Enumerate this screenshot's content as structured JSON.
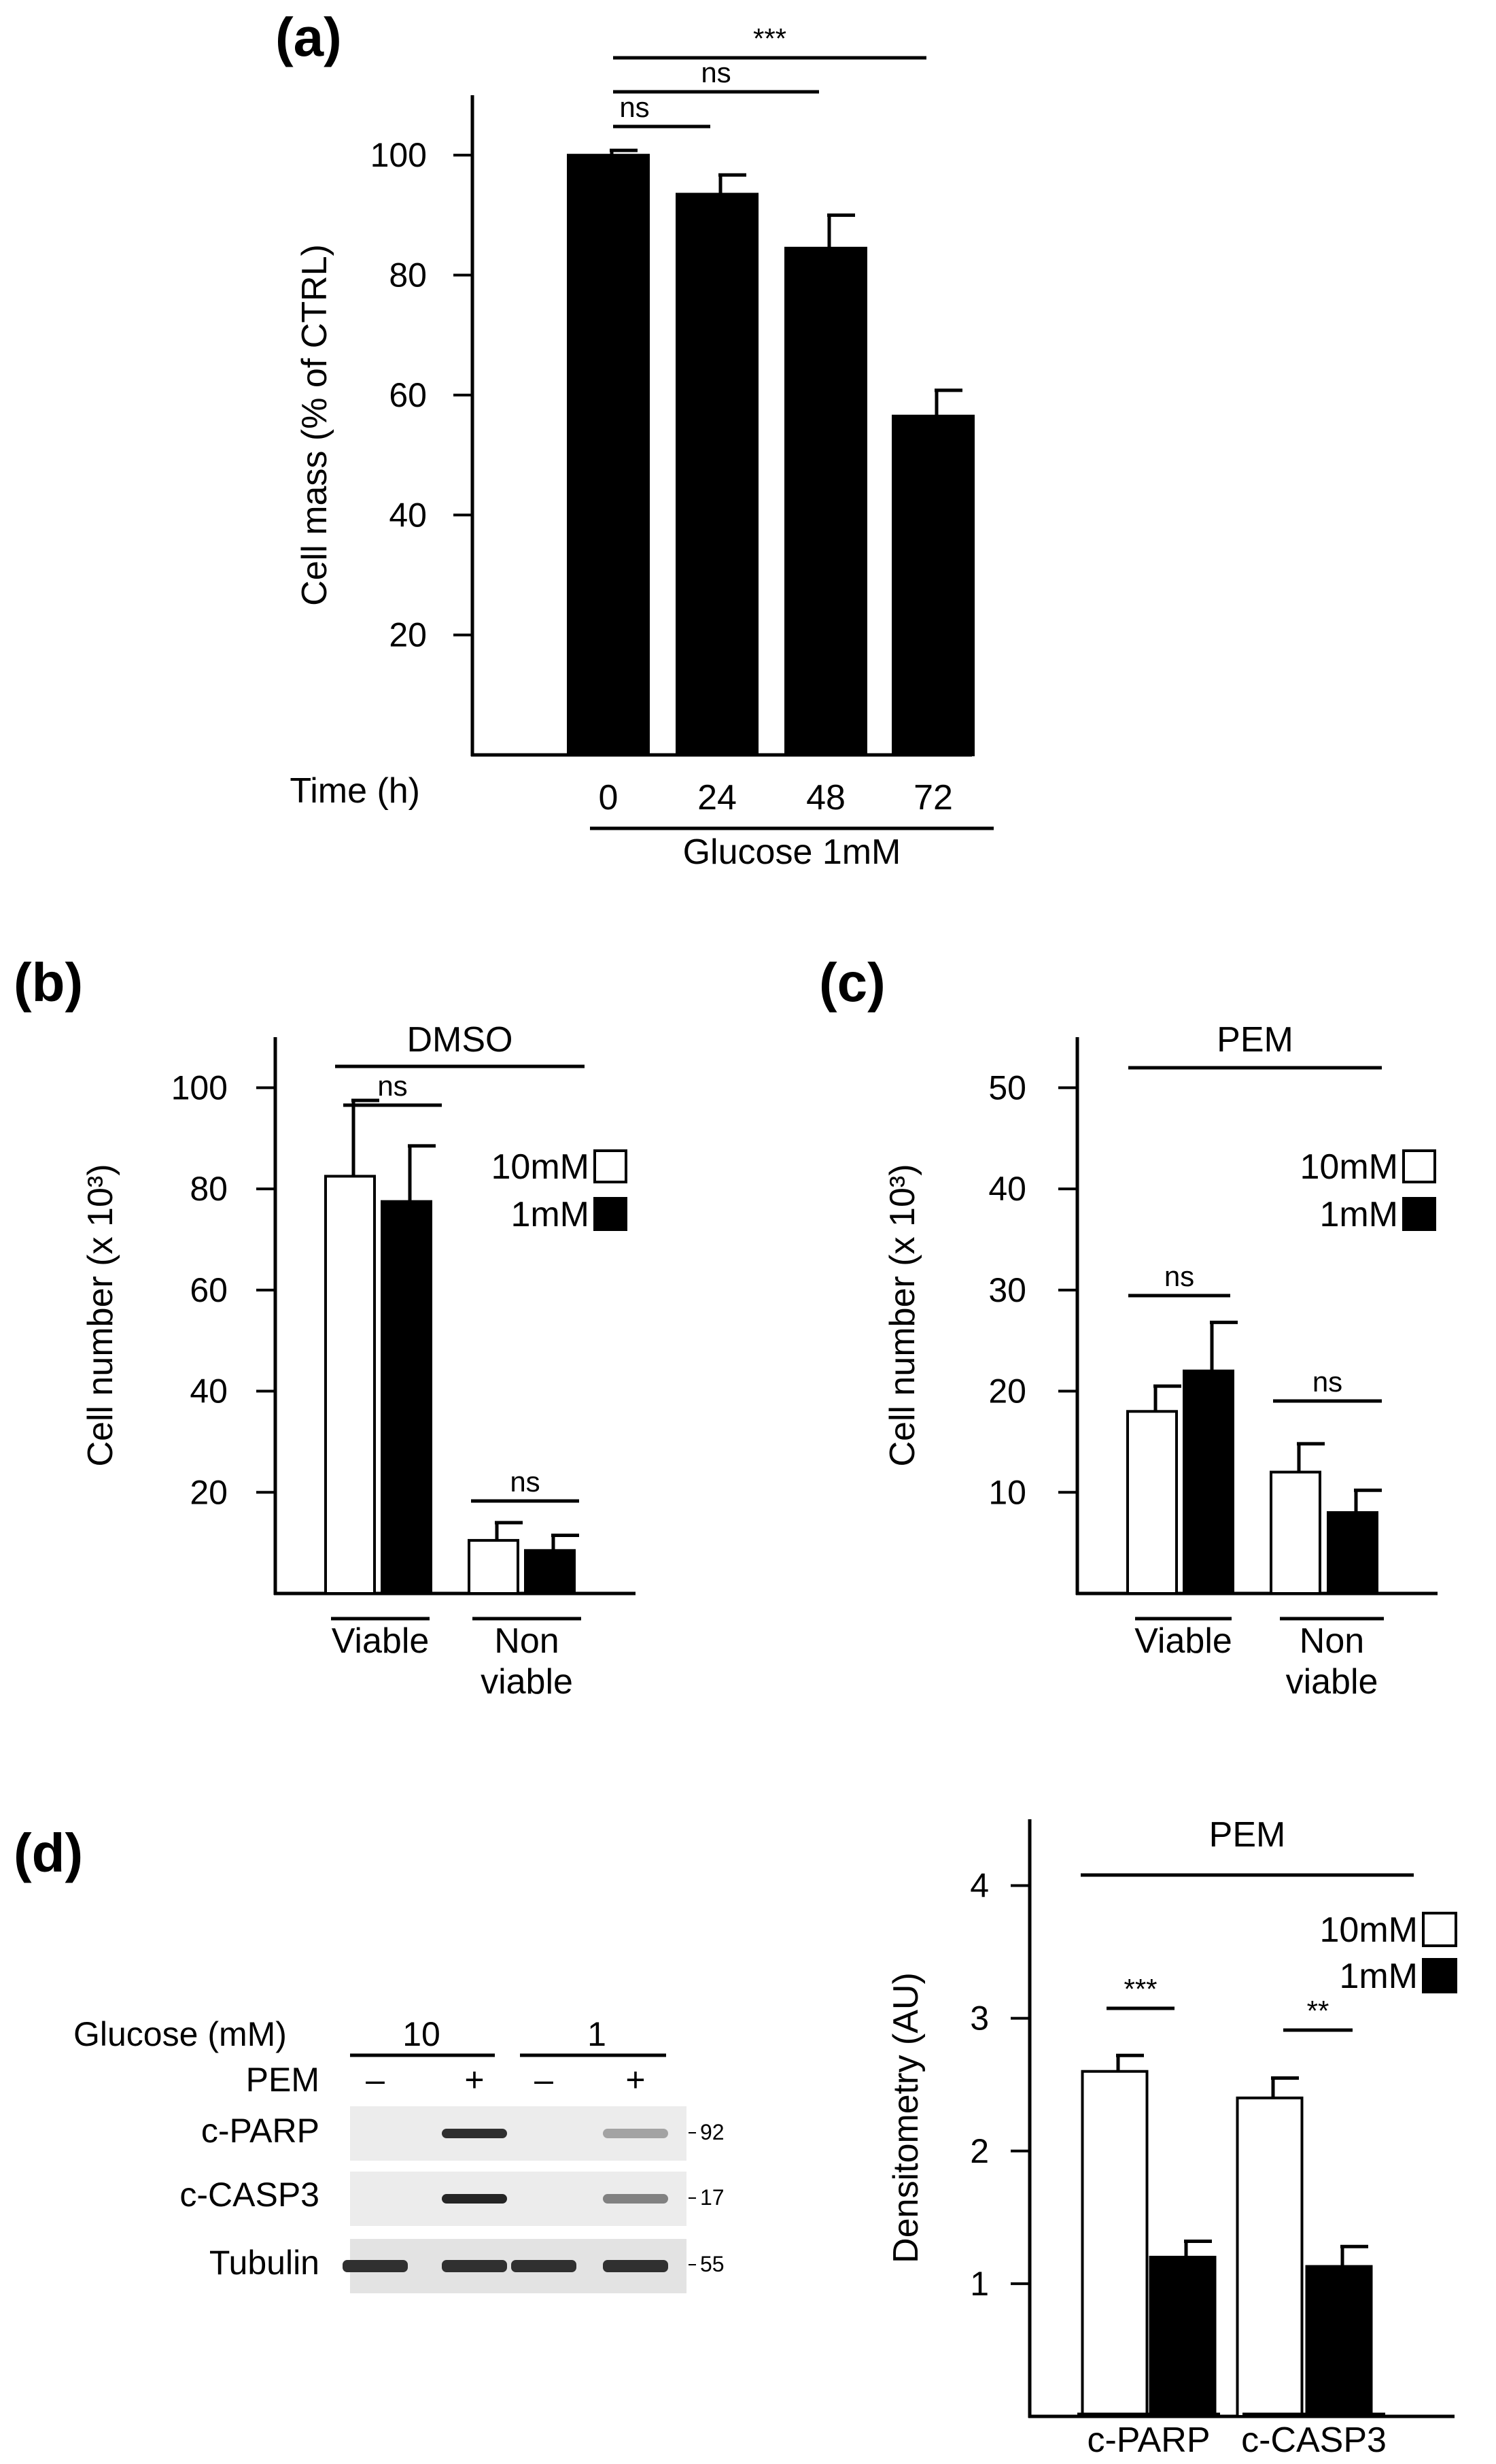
{
  "panels": {
    "a": {
      "label": "(a)"
    },
    "b": {
      "label": "(b)"
    },
    "c": {
      "label": "(c)"
    },
    "d": {
      "label": "(d)"
    }
  },
  "chart_data": [
    {
      "id": "a",
      "type": "bar",
      "title": "",
      "ylabel": "Cell mass (% of CTRL)",
      "xlabel": "Time (h)",
      "group_label": "Glucose 1mM",
      "ylim": [
        0,
        110
      ],
      "yticks": [
        20,
        40,
        60,
        80,
        100
      ],
      "categories": [
        "0",
        "24",
        "48",
        "72"
      ],
      "series": [
        {
          "name": "1mM",
          "fill": "black",
          "values": [
            100,
            93.5,
            84.5,
            56.5
          ],
          "errors": [
            0.8,
            3.2,
            5.5,
            4.3
          ]
        }
      ],
      "significance": [
        {
          "from": "0",
          "to": "24",
          "label": "ns"
        },
        {
          "from": "0",
          "to": "48",
          "label": "ns"
        },
        {
          "from": "0",
          "to": "72",
          "label": "***"
        }
      ]
    },
    {
      "id": "b",
      "type": "bar",
      "title": "DMSO",
      "ylabel": "Cell number (x 10³)",
      "ylim": [
        0,
        110
      ],
      "yticks": [
        20,
        40,
        60,
        80,
        100
      ],
      "categories": [
        "Viable",
        "Non viable"
      ],
      "category_lines": [
        [
          "Viable"
        ],
        [
          "Non",
          "viable"
        ]
      ],
      "series": [
        {
          "name": "10mM",
          "fill": "white",
          "values": [
            82.5,
            10.5
          ],
          "errors": [
            15,
            3.5
          ]
        },
        {
          "name": "1mM",
          "fill": "black",
          "values": [
            77.5,
            8.5
          ],
          "errors": [
            11,
            3
          ]
        }
      ],
      "legend": [
        "10mM",
        "1mM"
      ],
      "significance": [
        {
          "category": "Viable",
          "label": "ns"
        },
        {
          "category": "Non viable",
          "label": "ns"
        }
      ]
    },
    {
      "id": "c",
      "type": "bar",
      "title": "PEM",
      "ylabel": "Cell number (x 10³)",
      "ylim": [
        0,
        55
      ],
      "yticks": [
        10,
        20,
        30,
        40,
        50
      ],
      "categories": [
        "Viable",
        "Non viable"
      ],
      "category_lines": [
        [
          "Viable"
        ],
        [
          "Non",
          "viable"
        ]
      ],
      "series": [
        {
          "name": "10mM",
          "fill": "white",
          "values": [
            18,
            12
          ],
          "errors": [
            2.5,
            2.8
          ]
        },
        {
          "name": "1mM",
          "fill": "black",
          "values": [
            22,
            8
          ],
          "errors": [
            4.8,
            2.2
          ]
        }
      ],
      "legend": [
        "10mM",
        "1mM"
      ],
      "significance": [
        {
          "category": "Viable",
          "label": "ns"
        },
        {
          "category": "Non viable",
          "label": "ns"
        }
      ]
    },
    {
      "id": "d",
      "type": "bar",
      "title": "PEM",
      "ylabel": "Densitometry (AU)",
      "ylim": [
        0,
        4.5
      ],
      "yticks": [
        1,
        2,
        3,
        4
      ],
      "categories": [
        "c-PARP",
        "c-CASP3"
      ],
      "series": [
        {
          "name": "10mM",
          "fill": "white",
          "values": [
            2.6,
            2.4
          ],
          "errors": [
            0.12,
            0.15
          ]
        },
        {
          "name": "1mM",
          "fill": "black",
          "values": [
            1.2,
            1.13
          ],
          "errors": [
            0.12,
            0.15
          ]
        }
      ],
      "legend": [
        "10mM",
        "1mM"
      ],
      "significance": [
        {
          "category": "c-PARP",
          "label": "***"
        },
        {
          "category": "c-CASP3",
          "label": "**"
        }
      ]
    }
  ],
  "western_blot": {
    "glucose_label": "Glucose (mM)",
    "glucose_groups": [
      "10",
      "1"
    ],
    "pem_label": "PEM",
    "pem_signs": [
      "–",
      "+",
      "–",
      "+"
    ],
    "rows": [
      {
        "label": "c-PARP",
        "mw": "92",
        "intensities": [
          0.04,
          0.9,
          0.03,
          0.4
        ]
      },
      {
        "label": "c-CASP3",
        "mw": "17",
        "intensities": [
          0.05,
          0.95,
          0.04,
          0.55
        ]
      },
      {
        "label": "Tubulin",
        "mw": "55",
        "intensities": [
          0.9,
          0.9,
          0.9,
          0.9
        ]
      }
    ]
  }
}
